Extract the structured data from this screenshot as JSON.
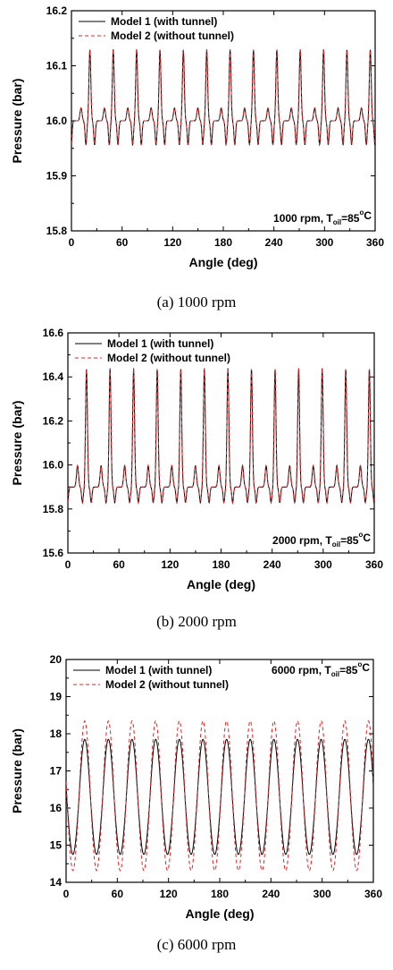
{
  "chart_data": [
    {
      "type": "line",
      "caption": "(a) 1000 rpm",
      "xlabel": "Angle (deg)",
      "ylabel": "Pressure (bar)",
      "xlim": [
        0,
        360
      ],
      "ylim": [
        15.8,
        16.2
      ],
      "xticks": [
        "0",
        "60",
        "120",
        "180",
        "240",
        "300",
        "360"
      ],
      "yticks": [
        "15.8",
        "15.9",
        "16.0",
        "16.1",
        "16.2"
      ],
      "grid": false,
      "legend_position": "top-left",
      "annotation": {
        "prefix": "1000 rpm, T",
        "sub": "oil",
        "mid": "=85",
        "sup": "o",
        "suffix": "C"
      },
      "annotation_position": "bottom-right",
      "wave": {
        "period": 27.7,
        "base": 16.0,
        "peak": 16.13,
        "trough": 15.92
      },
      "series": [
        {
          "name": "Model 1 (with tunnel)",
          "color": "#000000",
          "style": "solid",
          "scale": 1.0
        },
        {
          "name": "Model 2 (without tunnel)",
          "color": "#d62728",
          "style": "dashed",
          "scale": 1.0
        }
      ]
    },
    {
      "type": "line",
      "caption": "(b) 2000 rpm",
      "xlabel": "Angle (deg)",
      "ylabel": "Pressure (bar)",
      "xlim": [
        0,
        360
      ],
      "ylim": [
        15.6,
        16.6
      ],
      "xticks": [
        "0",
        "60",
        "120",
        "180",
        "240",
        "300",
        "360"
      ],
      "yticks": [
        "15.6",
        "15.8",
        "16.0",
        "16.2",
        "16.4",
        "16.6"
      ],
      "grid": false,
      "legend_position": "top-left",
      "annotation": {
        "prefix": "2000 rpm, T",
        "sub": "oil",
        "mid": "=85",
        "sup": "o",
        "suffix": "C"
      },
      "annotation_position": "bottom-right",
      "wave": {
        "period": 27.7,
        "base": 15.9,
        "peak": 16.44,
        "trough": 15.77
      },
      "series": [
        {
          "name": "Model 1 (with tunnel)",
          "color": "#000000",
          "style": "solid",
          "scale": 1.0
        },
        {
          "name": "Model 2 (without tunnel)",
          "color": "#d62728",
          "style": "dashed",
          "scale": 1.0
        }
      ]
    },
    {
      "type": "line",
      "caption": "(c) 6000 rpm",
      "xlabel": "Angle (deg)",
      "ylabel": "Pressure (bar)",
      "xlim": [
        0,
        360
      ],
      "ylim": [
        14,
        20
      ],
      "xticks": [
        "0",
        "60",
        "120",
        "180",
        "240",
        "300",
        "360"
      ],
      "yticks": [
        "14",
        "15",
        "16",
        "17",
        "18",
        "19",
        "20"
      ],
      "grid": false,
      "legend_position": "top-left",
      "annotation": {
        "prefix": "6000 rpm, T",
        "sub": "oil",
        "mid": "=85",
        "sup": "o",
        "suffix": "C"
      },
      "annotation_position": "top-right",
      "wave": {
        "period": 27.7,
        "base": 16.2,
        "peak": 17.85,
        "trough": 14.75
      },
      "series": [
        {
          "name": "Model 1 (with tunnel)",
          "color": "#000000",
          "style": "solid",
          "scale": 1.0
        },
        {
          "name": "Model 2 (without tunnel)",
          "color": "#d62728",
          "style": "dashed",
          "scale": 1.3
        }
      ]
    }
  ]
}
